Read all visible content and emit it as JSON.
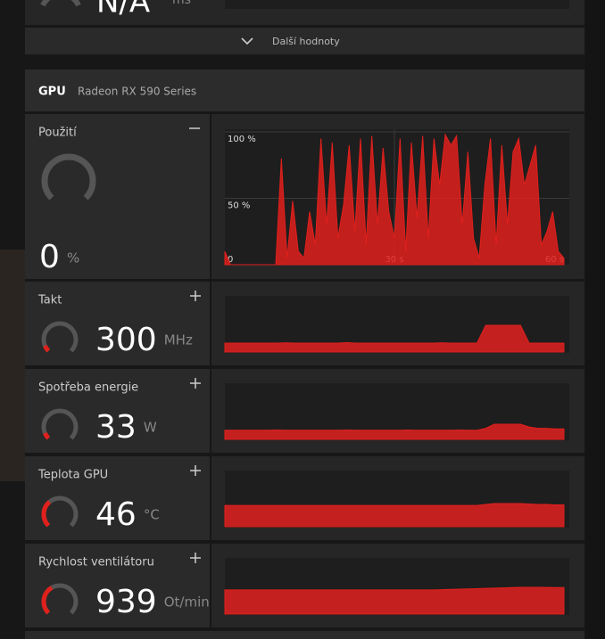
{
  "top": {
    "value": "N/A",
    "unit": "ms"
  },
  "more_button": "Další hodnoty",
  "gpu": {
    "label": "GPU",
    "name": "Radeon RX 590 Series"
  },
  "usage": {
    "title": "Použití",
    "value": 0,
    "unit": "%",
    "chart_data": {
      "type": "area",
      "color": "#e0201c",
      "xlim": [
        0,
        60
      ],
      "xticks": [
        0,
        {
          "value": 30,
          "label": "30 s"
        },
        {
          "value": 60,
          "label": "60 s"
        }
      ],
      "ylim": [
        0,
        100
      ],
      "yticks": [
        {
          "value": 50,
          "label": "50 %"
        },
        {
          "value": 100,
          "label": "100 %"
        }
      ],
      "grid": true,
      "values": [
        10,
        0,
        0,
        0,
        0,
        0,
        0,
        0,
        0,
        0,
        80,
        5,
        48,
        10,
        5,
        40,
        15,
        95,
        30,
        92,
        20,
        45,
        90,
        25,
        95,
        15,
        97,
        30,
        88,
        40,
        20,
        95,
        10,
        92,
        35,
        97,
        20,
        95,
        60,
        98,
        90,
        97,
        30,
        85,
        20,
        5,
        60,
        95,
        15,
        90,
        30,
        85,
        95,
        60,
        75,
        90,
        15,
        25,
        40,
        10,
        5
      ]
    }
  },
  "metrics": [
    {
      "title": "Takt",
      "value": 300,
      "unit": "MHz",
      "history": [
        300,
        300,
        300,
        300,
        300,
        300,
        300,
        310,
        300,
        300,
        300,
        300,
        300,
        300,
        320,
        300,
        300,
        300,
        300,
        300,
        300,
        300,
        300,
        300,
        300,
        310,
        300,
        300,
        300,
        300,
        900,
        900,
        900,
        900,
        900,
        300,
        300,
        300,
        300,
        300
      ]
    },
    {
      "title": "Spotřeba energie",
      "value": 33,
      "unit": "W",
      "history": [
        33,
        33,
        33,
        33,
        33,
        33,
        34,
        33,
        33,
        33,
        33,
        33,
        33,
        33,
        34,
        33,
        33,
        33,
        33,
        33,
        33,
        34,
        33,
        33,
        33,
        33,
        33,
        34,
        33,
        33,
        40,
        55,
        55,
        55,
        55,
        45,
        40,
        40,
        38,
        38
      ]
    },
    {
      "title": "Teplota GPU",
      "value": 46,
      "unit": "°C",
      "history": [
        46,
        46,
        46,
        46,
        46,
        46,
        46,
        46,
        46,
        46,
        46,
        46,
        46,
        46,
        46,
        46,
        46,
        46,
        46,
        46,
        46,
        46,
        46,
        46,
        46,
        46,
        46,
        46,
        46,
        46,
        48,
        50,
        50,
        50,
        50,
        49,
        48,
        48,
        47,
        47
      ]
    },
    {
      "title": "Rychlost ventilátoru",
      "value": 939,
      "unit": "Ot/min",
      "history": [
        939,
        939,
        939,
        939,
        939,
        939,
        939,
        939,
        939,
        939,
        939,
        939,
        939,
        939,
        939,
        939,
        939,
        939,
        939,
        939,
        939,
        939,
        939,
        939,
        939,
        950,
        960,
        970,
        980,
        990,
        1000,
        1010,
        1020,
        1030,
        1040,
        1040,
        1040,
        1035,
        1030,
        1030
      ]
    }
  ]
}
